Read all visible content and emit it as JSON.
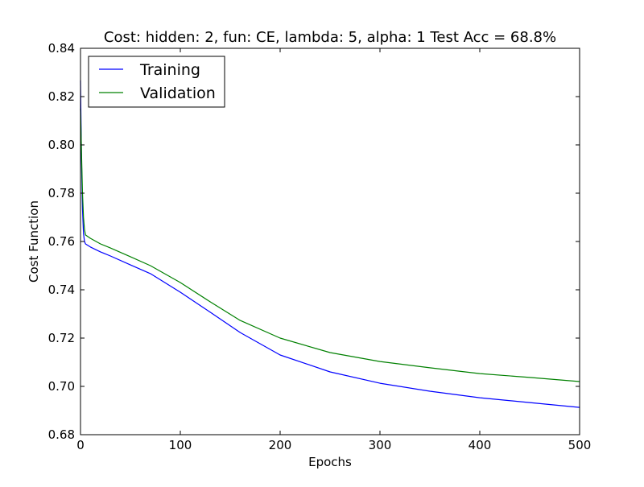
{
  "chart_data": {
    "type": "line",
    "title": "Cost: hidden: 2, fun: CE, lambda: 5, alpha: 1  Test Acc = 68.8%",
    "xlabel": "Epochs",
    "ylabel": "Cost Function",
    "xlim": [
      0,
      500
    ],
    "ylim": [
      0.68,
      0.84
    ],
    "xticks": [
      0,
      100,
      200,
      300,
      400,
      500
    ],
    "yticks": [
      0.68,
      0.7,
      0.72,
      0.74,
      0.76,
      0.78,
      0.8,
      0.82,
      0.84
    ],
    "xtick_labels": [
      "0",
      "100",
      "200",
      "300",
      "400",
      "500"
    ],
    "ytick_labels": [
      "0.68",
      "0.70",
      "0.72",
      "0.74",
      "0.76",
      "0.78",
      "0.80",
      "0.82",
      "0.84"
    ],
    "grid": false,
    "legend_position": "top-left",
    "series": [
      {
        "name": "Training",
        "color": "#0000ff",
        "points": [
          [
            0,
            0.8267
          ],
          [
            1,
            0.7933
          ],
          [
            2,
            0.7733
          ],
          [
            3,
            0.7633
          ],
          [
            4,
            0.76
          ],
          [
            5,
            0.759
          ],
          [
            10,
            0.7577
          ],
          [
            20,
            0.7557
          ],
          [
            30,
            0.754
          ],
          [
            50,
            0.7503
          ],
          [
            70,
            0.7467
          ],
          [
            100,
            0.739
          ],
          [
            130,
            0.7307
          ],
          [
            160,
            0.7223
          ],
          [
            200,
            0.713
          ],
          [
            250,
            0.706
          ],
          [
            300,
            0.7013
          ],
          [
            350,
            0.698
          ],
          [
            400,
            0.6953
          ],
          [
            450,
            0.6933
          ],
          [
            500,
            0.6913
          ]
        ]
      },
      {
        "name": "Validation",
        "color": "#008000",
        "points": [
          [
            0,
            0.815
          ],
          [
            1,
            0.7967
          ],
          [
            2,
            0.78
          ],
          [
            3,
            0.77
          ],
          [
            4,
            0.765
          ],
          [
            5,
            0.7627
          ],
          [
            10,
            0.7613
          ],
          [
            20,
            0.759
          ],
          [
            30,
            0.7573
          ],
          [
            50,
            0.7537
          ],
          [
            70,
            0.75
          ],
          [
            100,
            0.743
          ],
          [
            130,
            0.735
          ],
          [
            160,
            0.7273
          ],
          [
            200,
            0.72
          ],
          [
            250,
            0.714
          ],
          [
            300,
            0.7103
          ],
          [
            350,
            0.7077
          ],
          [
            400,
            0.7053
          ],
          [
            450,
            0.7037
          ],
          [
            500,
            0.702
          ]
        ]
      }
    ]
  }
}
